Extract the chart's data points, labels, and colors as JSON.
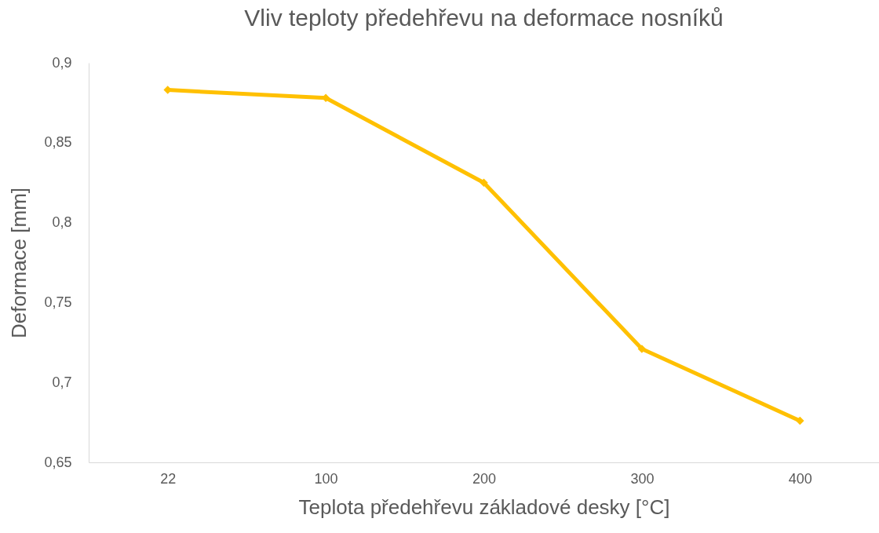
{
  "chart_data": {
    "type": "line",
    "title": "Vliv teploty předehřevu na  deformace nosníků",
    "xlabel": "Teplota předehřevu základové desky [°C]",
    "ylabel": "Deformace [mm]",
    "categories": [
      "22",
      "100",
      "200",
      "300",
      "400"
    ],
    "series": [
      {
        "color": "#ffc000",
        "values": [
          0.883,
          0.878,
          0.825,
          0.721,
          0.676
        ]
      }
    ],
    "ylim": [
      0.65,
      0.9
    ],
    "yticks": [
      {
        "value": 0.65,
        "label": "0,65"
      },
      {
        "value": 0.7,
        "label": "0,7"
      },
      {
        "value": 0.75,
        "label": "0,75"
      },
      {
        "value": 0.8,
        "label": "0,8"
      },
      {
        "value": 0.85,
        "label": "0,85"
      },
      {
        "value": 0.9,
        "label": "0,9"
      }
    ],
    "grid": false,
    "marker": "diamond",
    "line_style": "solid"
  }
}
